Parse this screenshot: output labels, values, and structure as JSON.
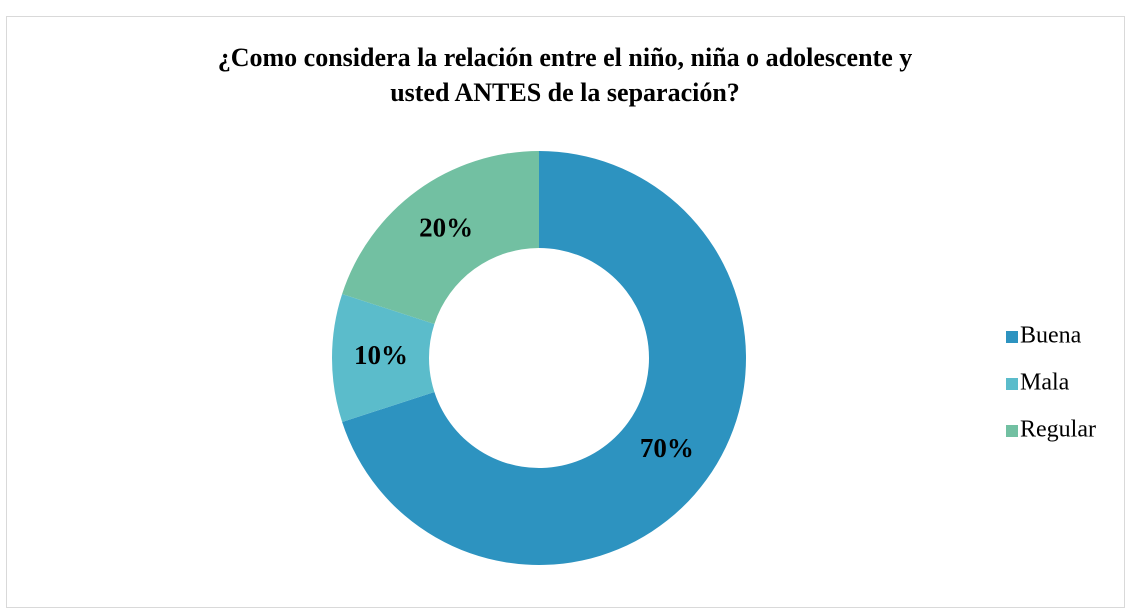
{
  "chart_data": {
    "type": "doughnut",
    "title": "¿Como considera la relación entre el niño, niña o adolescente y usted ANTES de la separación?",
    "categories": [
      "Buena",
      "Mala",
      "Regular"
    ],
    "values": [
      70,
      10,
      20
    ],
    "value_labels": [
      "70%",
      "10%",
      "20%"
    ],
    "colors": [
      "#2d93c0",
      "#5bbccb",
      "#72c0a2"
    ],
    "legend": "right"
  }
}
